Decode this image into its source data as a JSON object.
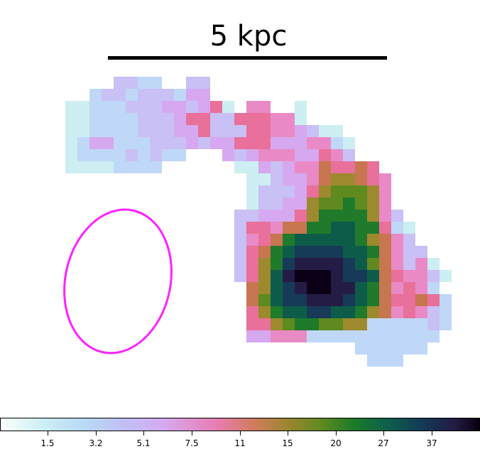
{
  "scale_bar": {
    "label": "5 kpc"
  },
  "colorbar": {
    "tick_labels": [
      "1.5",
      "3.2",
      "5.1",
      "7.5",
      "11",
      "15",
      "20",
      "27",
      "37"
    ]
  },
  "colors": {
    "ellipse": "#ff22ff",
    "scale_bar": "#000000"
  }
}
